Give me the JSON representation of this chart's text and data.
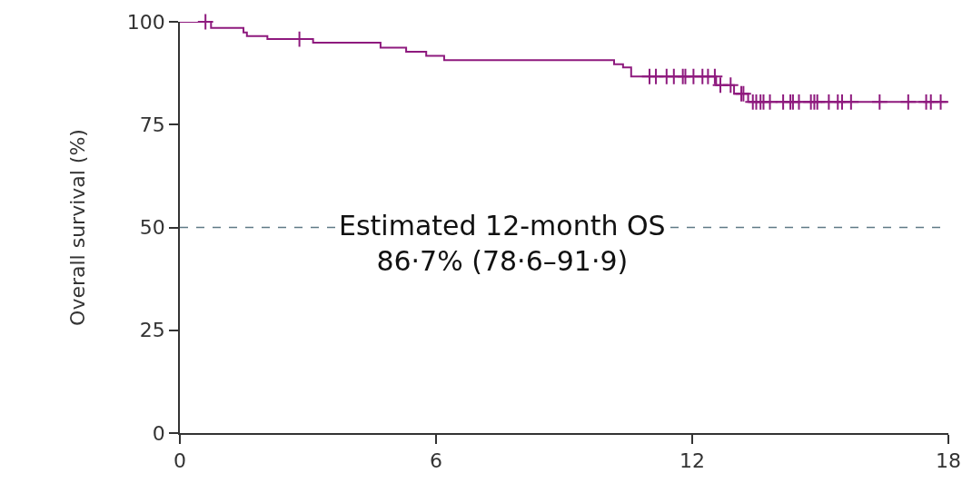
{
  "chart_data": {
    "type": "step",
    "ylabel": "Overall survival (%)",
    "xlim": [
      0,
      18
    ],
    "xticks": [
      0,
      6,
      12,
      18
    ],
    "ylim": [
      0,
      100
    ],
    "yticks": [
      0,
      25,
      50,
      75,
      100
    ],
    "series": [
      {
        "color": "#8e1a7e",
        "marker": "none",
        "x": [
          0,
          0.73,
          1.49,
          1.57,
          2.05,
          3.12,
          4.7,
          5.3,
          5.77,
          6.19,
          10.17,
          10.38,
          10.57,
          12.56,
          12.98,
          13.31,
          17.97
        ],
        "values": [
          100,
          98.5,
          97.4,
          96.5,
          95.8,
          94.9,
          93.7,
          92.7,
          91.7,
          90.7,
          89.7,
          88.9,
          86.7,
          84.6,
          82.5,
          80.5,
          80.5
        ]
      },
      {
        "type": "scatter",
        "color": "#8e1a7e",
        "marker": "cross",
        "x": [
          0.6,
          2.8,
          11.0,
          11.15,
          11.4,
          11.57,
          11.78,
          11.84,
          12.03,
          12.24,
          12.37,
          12.53,
          12.66,
          12.9,
          13.15,
          13.2,
          13.42,
          13.5,
          13.6,
          13.67,
          13.82,
          14.13,
          14.3,
          14.36,
          14.5,
          14.78,
          14.86,
          14.93,
          15.2,
          15.41,
          15.51,
          15.72,
          16.39,
          17.06,
          17.48,
          17.59,
          17.82
        ],
        "values": [
          100,
          95.8,
          86.7,
          86.7,
          86.7,
          86.7,
          86.7,
          86.7,
          86.7,
          86.7,
          86.7,
          86.7,
          84.6,
          84.6,
          82.5,
          82.5,
          80.5,
          80.5,
          80.5,
          80.5,
          80.5,
          80.5,
          80.5,
          80.5,
          80.5,
          80.5,
          80.5,
          80.5,
          80.5,
          80.5,
          80.5,
          80.5,
          80.5,
          80.5,
          80.5,
          80.5,
          80.5
        ]
      }
    ],
    "ref_lines": [
      {
        "axis": "y",
        "value": 50,
        "color": "#5f7a86",
        "line_style": "dashed"
      }
    ],
    "annotations": [
      "Estimated 12-month OS\n86·7% (78·6–91·9)"
    ]
  }
}
